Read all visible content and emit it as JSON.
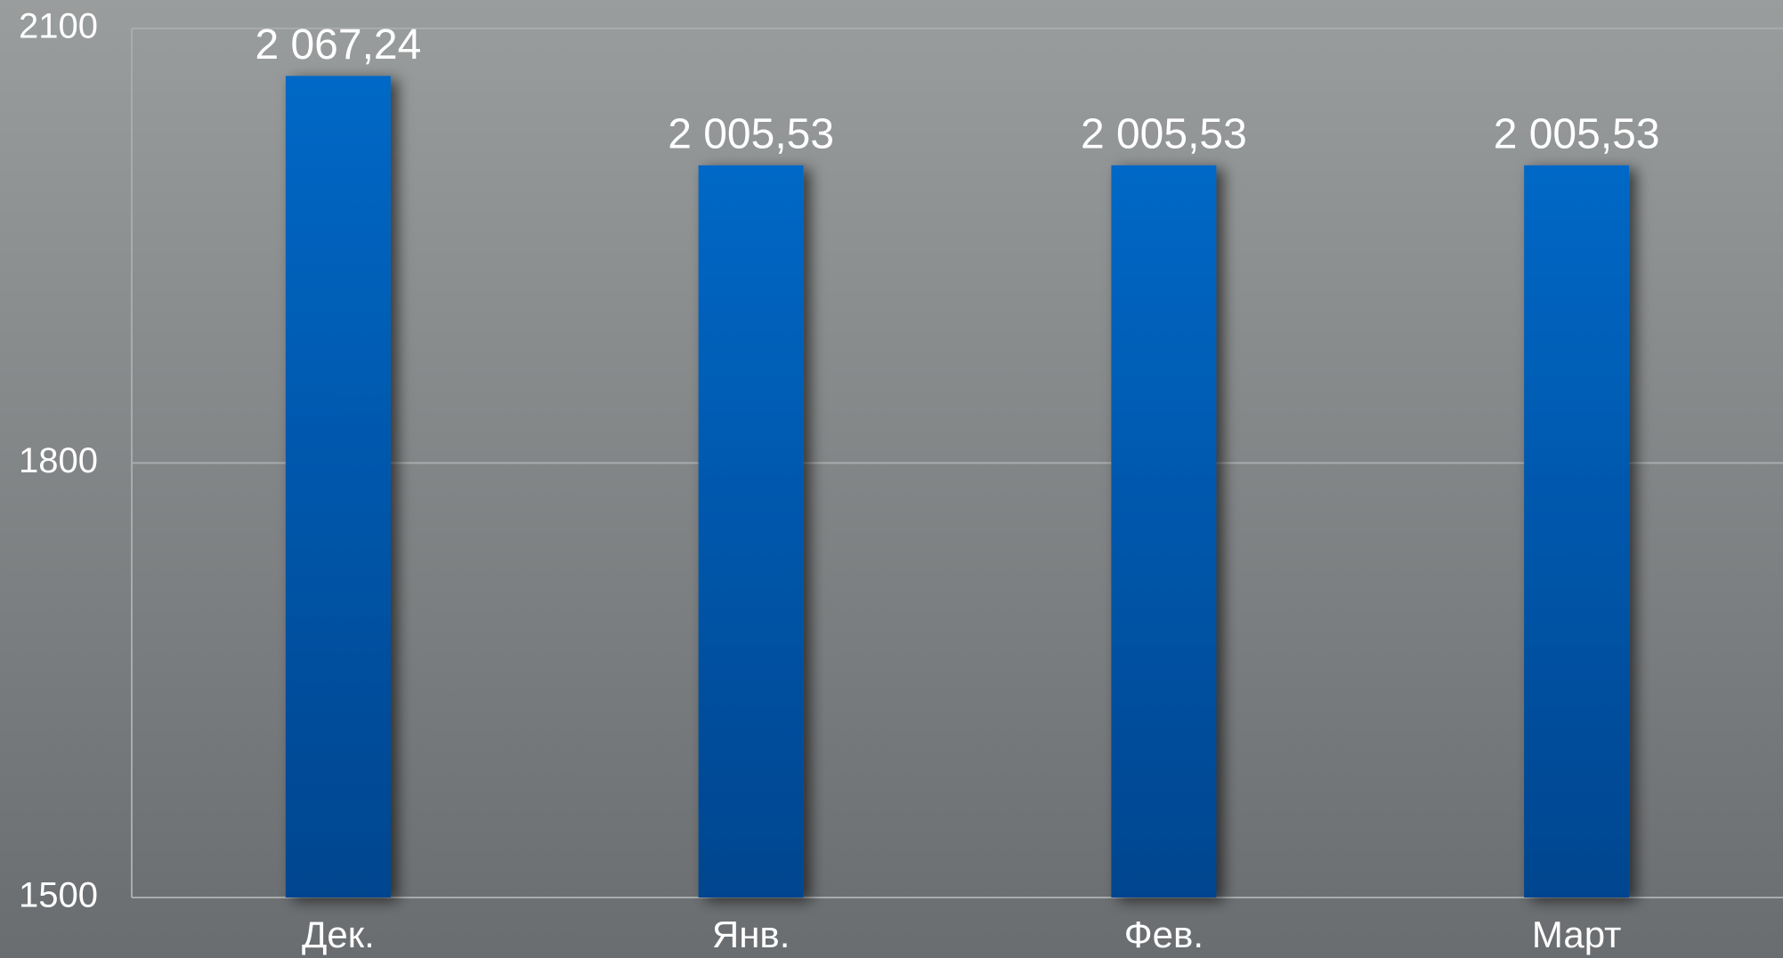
{
  "chart_data": {
    "type": "bar",
    "categories": [
      "Дек.",
      "Янв.",
      "Фев.",
      "Март"
    ],
    "values": [
      2067.24,
      2005.53,
      2005.53,
      2005.53
    ],
    "value_labels": [
      "2 067,24",
      "2 005,53",
      "2 005,53",
      "2 005,53"
    ],
    "color": "#0560b8",
    "ylim": [
      1500,
      2100
    ],
    "yticks": [
      1500,
      1800,
      2100
    ],
    "grid": true
  }
}
